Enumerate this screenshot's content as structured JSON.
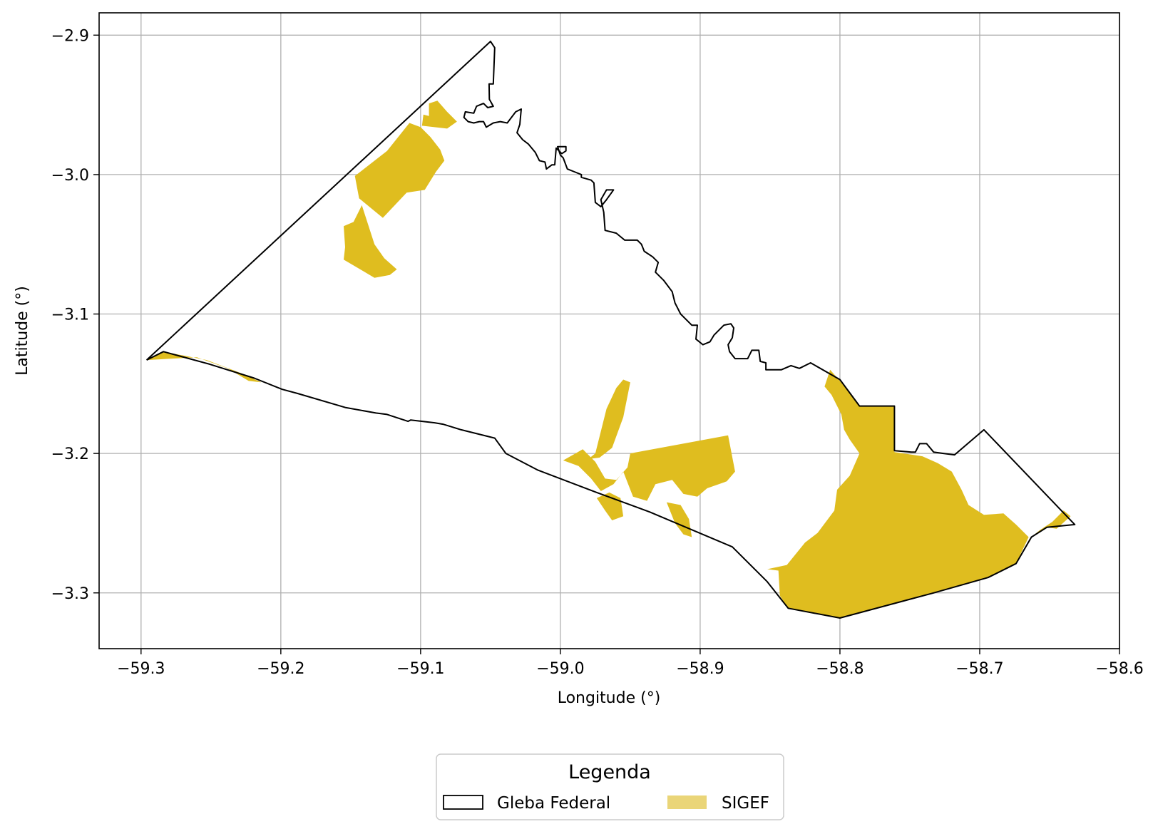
{
  "chart_data": {
    "type": "map",
    "xlabel": "Longitude (°)",
    "ylabel": "Latitude (°)",
    "xlim": [
      -59.33,
      -58.6
    ],
    "ylim": [
      -3.34,
      -2.884
    ],
    "x_ticks": [
      -59.3,
      -59.2,
      -59.1,
      -59.0,
      -58.9,
      -58.8,
      -58.7,
      -58.6
    ],
    "x_tick_labels": [
      "−59.3",
      "−59.2",
      "−59.1",
      "−59.0",
      "−58.9",
      "−58.8",
      "−58.7",
      "−58.6"
    ],
    "y_ticks": [
      -2.9,
      -3.0,
      -3.1,
      -3.2,
      -3.3
    ],
    "y_tick_labels": [
      "−2.9",
      "−3.0",
      "−3.1",
      "−3.2",
      "−3.3"
    ],
    "grid": true,
    "colors": {
      "sigef_fill": "#dfbd1f",
      "sigef_legend": "#ead578",
      "gleba_edge": "#000000",
      "grid": "#b0b0b0"
    },
    "legend": {
      "title": "Legenda",
      "placement": "bottom-center",
      "entries": [
        "Gleba Federal",
        "SIGEF"
      ]
    },
    "gleba_federal": [
      [
        -59.296,
        -3.133
      ],
      [
        -59.05,
        -2.9045
      ],
      [
        -59.047,
        -2.909
      ],
      [
        -59.048,
        -2.935
      ],
      [
        -59.051,
        -2.935
      ],
      [
        -59.0508,
        -2.946
      ],
      [
        -59.048,
        -2.951
      ],
      [
        -59.052,
        -2.952
      ],
      [
        -59.055,
        -2.949
      ],
      [
        -59.06,
        -2.951
      ],
      [
        -59.062,
        -2.956
      ],
      [
        -59.068,
        -2.955
      ],
      [
        -59.069,
        -2.959
      ],
      [
        -59.066,
        -2.962
      ],
      [
        -59.062,
        -2.963
      ],
      [
        -59.058,
        -2.962
      ],
      [
        -59.055,
        -2.962
      ],
      [
        -59.053,
        -2.966
      ],
      [
        -59.048,
        -2.963
      ],
      [
        -59.043,
        -2.962
      ],
      [
        -59.038,
        -2.963
      ],
      [
        -59.032,
        -2.955
      ],
      [
        -59.028,
        -2.953
      ],
      [
        -59.029,
        -2.964
      ],
      [
        -59.031,
        -2.97
      ],
      [
        -59.027,
        -2.975
      ],
      [
        -59.023,
        -2.978
      ],
      [
        -59.018,
        -2.984
      ],
      [
        -59.015,
        -2.99
      ],
      [
        -59.011,
        -2.991
      ],
      [
        -59.01,
        -2.996
      ],
      [
        -59.006,
        -2.993
      ],
      [
        -59.004,
        -2.993
      ],
      [
        -59.003,
        -2.981
      ],
      [
        -58.999,
        -2.985
      ],
      [
        -58.996,
        -2.983
      ],
      [
        -58.996,
        -2.98
      ],
      [
        -59.002,
        -2.98
      ],
      [
        -59.0,
        -2.986
      ],
      [
        -58.998,
        -2.988
      ],
      [
        -58.995,
        -2.996
      ],
      [
        -58.99,
        -2.998
      ],
      [
        -58.985,
        -3.0
      ],
      [
        -58.985,
        -3.002
      ],
      [
        -58.978,
        -3.004
      ],
      [
        -58.976,
        -3.006
      ],
      [
        -58.975,
        -3.02
      ],
      [
        -58.971,
        -3.023
      ],
      [
        -58.967,
        -3.018
      ],
      [
        -58.962,
        -3.011
      ],
      [
        -58.967,
        -3.011
      ],
      [
        -58.971,
        -3.018
      ],
      [
        -58.969,
        -3.027
      ],
      [
        -58.968,
        -3.04
      ],
      [
        -58.96,
        -3.042
      ],
      [
        -58.954,
        -3.047
      ],
      [
        -58.945,
        -3.047
      ],
      [
        -58.942,
        -3.05
      ],
      [
        -58.94,
        -3.055
      ],
      [
        -58.934,
        -3.059
      ],
      [
        -58.93,
        -3.063
      ],
      [
        -58.932,
        -3.07
      ],
      [
        -58.926,
        -3.076
      ],
      [
        -58.92,
        -3.084
      ],
      [
        -58.918,
        -3.092
      ],
      [
        -58.914,
        -3.1
      ],
      [
        -58.906,
        -3.108
      ],
      [
        -58.902,
        -3.108
      ],
      [
        -58.903,
        -3.118
      ],
      [
        -58.898,
        -3.122
      ],
      [
        -58.893,
        -3.12
      ],
      [
        -58.89,
        -3.115
      ],
      [
        -58.883,
        -3.108
      ],
      [
        -58.878,
        -3.107
      ],
      [
        -58.876,
        -3.11
      ],
      [
        -58.877,
        -3.117
      ],
      [
        -58.88,
        -3.122
      ],
      [
        -58.879,
        -3.127
      ],
      [
        -58.875,
        -3.132
      ],
      [
        -58.866,
        -3.132
      ],
      [
        -58.863,
        -3.126
      ],
      [
        -58.858,
        -3.126
      ],
      [
        -58.857,
        -3.134
      ],
      [
        -58.853,
        -3.135
      ],
      [
        -58.853,
        -3.14
      ],
      [
        -58.842,
        -3.14
      ],
      [
        -58.835,
        -3.137
      ],
      [
        -58.829,
        -3.139
      ],
      [
        -58.821,
        -3.135
      ],
      [
        -58.8,
        -3.147
      ],
      [
        -58.786,
        -3.166
      ],
      [
        -58.772,
        -3.166
      ],
      [
        -58.761,
        -3.166
      ],
      [
        -58.761,
        -3.198
      ],
      [
        -58.749,
        -3.199
      ],
      [
        -58.746,
        -3.199
      ],
      [
        -58.743,
        -3.193
      ],
      [
        -58.738,
        -3.193
      ],
      [
        -58.733,
        -3.199
      ],
      [
        -58.726,
        -3.2
      ],
      [
        -58.718,
        -3.201
      ],
      [
        -58.697,
        -3.183
      ],
      [
        -58.632,
        -3.251
      ],
      [
        -58.652,
        -3.253
      ],
      [
        -58.663,
        -3.26
      ],
      [
        -58.674,
        -3.279
      ],
      [
        -58.694,
        -3.289
      ],
      [
        -58.733,
        -3.3
      ],
      [
        -58.8,
        -3.318
      ],
      [
        -58.837,
        -3.311
      ],
      [
        -58.852,
        -3.292
      ],
      [
        -58.877,
        -3.267
      ],
      [
        -58.936,
        -3.242
      ],
      [
        -58.974,
        -3.228
      ],
      [
        -59.016,
        -3.212
      ],
      [
        -59.039,
        -3.2
      ],
      [
        -59.047,
        -3.189
      ],
      [
        -59.071,
        -3.183
      ],
      [
        -59.084,
        -3.179
      ],
      [
        -59.09,
        -3.178
      ],
      [
        -59.107,
        -3.176
      ],
      [
        -59.109,
        -3.177
      ],
      [
        -59.124,
        -3.172
      ],
      [
        -59.132,
        -3.171
      ],
      [
        -59.154,
        -3.167
      ],
      [
        -59.188,
        -3.157
      ],
      [
        -59.199,
        -3.154
      ],
      [
        -59.219,
        -3.146
      ],
      [
        -59.251,
        -3.136
      ],
      [
        -59.284,
        -3.127
      ],
      [
        -59.296,
        -3.133
      ]
    ],
    "sigef_parcels": [
      [
        [
          -59.1,
          -2.966
        ],
        [
          -59.093,
          -2.973
        ],
        [
          -59.086,
          -2.982
        ],
        [
          -59.083,
          -2.99
        ],
        [
          -59.089,
          -2.998
        ],
        [
          -59.097,
          -3.011
        ],
        [
          -59.11,
          -3.013
        ],
        [
          -59.127,
          -3.031
        ],
        [
          -59.144,
          -3.017
        ],
        [
          -59.147,
          -3.001
        ],
        [
          -59.124,
          -2.983
        ],
        [
          -59.108,
          -2.963
        ],
        [
          -59.1,
          -2.966
        ]
      ],
      [
        [
          -59.099,
          -2.965
        ],
        [
          -59.098,
          -2.957
        ],
        [
          -59.094,
          -2.958
        ],
        [
          -59.094,
          -2.949
        ],
        [
          -59.088,
          -2.947
        ],
        [
          -59.081,
          -2.955
        ],
        [
          -59.074,
          -2.962
        ],
        [
          -59.081,
          -2.967
        ],
        [
          -59.099,
          -2.965
        ]
      ],
      [
        [
          -59.142,
          -3.022
        ],
        [
          -59.148,
          -3.034
        ],
        [
          -59.155,
          -3.037
        ],
        [
          -59.154,
          -3.052
        ],
        [
          -59.155,
          -3.061
        ],
        [
          -59.133,
          -3.074
        ],
        [
          -59.122,
          -3.072
        ],
        [
          -59.117,
          -3.068
        ],
        [
          -59.126,
          -3.06
        ],
        [
          -59.133,
          -3.05
        ],
        [
          -59.142,
          -3.022
        ]
      ],
      [
        [
          -59.296,
          -3.133
        ],
        [
          -59.284,
          -3.127
        ],
        [
          -59.253,
          -3.133
        ],
        [
          -59.24,
          -3.138
        ],
        [
          -59.227,
          -3.143
        ],
        [
          -59.214,
          -3.149
        ],
        [
          -59.223,
          -3.148
        ],
        [
          -59.238,
          -3.139
        ],
        [
          -59.26,
          -3.131
        ],
        [
          -59.296,
          -3.133
        ]
      ],
      [
        [
          -58.98,
          -3.204
        ],
        [
          -58.972,
          -3.203
        ],
        [
          -58.963,
          -3.196
        ],
        [
          -58.955,
          -3.174
        ],
        [
          -58.95,
          -3.149
        ],
        [
          -58.955,
          -3.147
        ],
        [
          -58.96,
          -3.153
        ],
        [
          -58.967,
          -3.168
        ],
        [
          -58.975,
          -3.2
        ],
        [
          -58.98,
          -3.204
        ]
      ],
      [
        [
          -58.998,
          -3.205
        ],
        [
          -58.984,
          -3.197
        ],
        [
          -58.975,
          -3.206
        ],
        [
          -58.968,
          -3.218
        ],
        [
          -58.96,
          -3.219
        ],
        [
          -58.952,
          -3.21
        ],
        [
          -58.95,
          -3.2
        ],
        [
          -58.88,
          -3.187
        ],
        [
          -58.875,
          -3.213
        ],
        [
          -58.881,
          -3.22
        ],
        [
          -58.895,
          -3.225
        ],
        [
          -58.902,
          -3.231
        ],
        [
          -58.912,
          -3.229
        ],
        [
          -58.92,
          -3.219
        ],
        [
          -58.932,
          -3.222
        ],
        [
          -58.938,
          -3.234
        ],
        [
          -58.948,
          -3.231
        ],
        [
          -58.955,
          -3.213
        ],
        [
          -58.962,
          -3.222
        ],
        [
          -58.971,
          -3.227
        ],
        [
          -58.978,
          -3.218
        ],
        [
          -58.987,
          -3.209
        ],
        [
          -58.998,
          -3.205
        ]
      ],
      [
        [
          -58.974,
          -3.232
        ],
        [
          -58.965,
          -3.228
        ],
        [
          -58.957,
          -3.232
        ],
        [
          -58.955,
          -3.245
        ],
        [
          -58.963,
          -3.248
        ],
        [
          -58.968,
          -3.241
        ],
        [
          -58.974,
          -3.232
        ]
      ],
      [
        [
          -58.924,
          -3.235
        ],
        [
          -58.918,
          -3.25
        ],
        [
          -58.912,
          -3.258
        ],
        [
          -58.906,
          -3.26
        ],
        [
          -58.908,
          -3.247
        ],
        [
          -58.914,
          -3.237
        ],
        [
          -58.924,
          -3.235
        ]
      ],
      [
        [
          -58.8,
          -3.318
        ],
        [
          -58.837,
          -3.311
        ],
        [
          -58.843,
          -3.302
        ],
        [
          -58.844,
          -3.284
        ],
        [
          -58.852,
          -3.283
        ],
        [
          -58.838,
          -3.28
        ],
        [
          -58.825,
          -3.264
        ],
        [
          -58.816,
          -3.257
        ],
        [
          -58.804,
          -3.241
        ],
        [
          -58.802,
          -3.226
        ],
        [
          -58.793,
          -3.216
        ],
        [
          -58.786,
          -3.2
        ],
        [
          -58.793,
          -3.19
        ],
        [
          -58.797,
          -3.183
        ],
        [
          -58.799,
          -3.172
        ],
        [
          -58.806,
          -3.158
        ],
        [
          -58.811,
          -3.152
        ],
        [
          -58.807,
          -3.14
        ],
        [
          -58.8,
          -3.148
        ],
        [
          -58.786,
          -3.166
        ],
        [
          -58.761,
          -3.166
        ],
        [
          -58.761,
          -3.199
        ],
        [
          -58.741,
          -3.202
        ],
        [
          -58.73,
          -3.207
        ],
        [
          -58.72,
          -3.213
        ],
        [
          -58.713,
          -3.226
        ],
        [
          -58.708,
          -3.237
        ],
        [
          -58.697,
          -3.244
        ],
        [
          -58.683,
          -3.243
        ],
        [
          -58.674,
          -3.251
        ],
        [
          -58.665,
          -3.26
        ],
        [
          -58.674,
          -3.279
        ],
        [
          -58.694,
          -3.289
        ],
        [
          -58.733,
          -3.3
        ],
        [
          -58.8,
          -3.318
        ]
      ],
      [
        [
          -58.662,
          -3.259
        ],
        [
          -58.657,
          -3.255
        ],
        [
          -58.648,
          -3.249
        ],
        [
          -58.64,
          -3.241
        ],
        [
          -58.635,
          -3.245
        ],
        [
          -58.645,
          -3.254
        ],
        [
          -58.652,
          -3.253
        ],
        [
          -58.662,
          -3.259
        ]
      ]
    ]
  }
}
